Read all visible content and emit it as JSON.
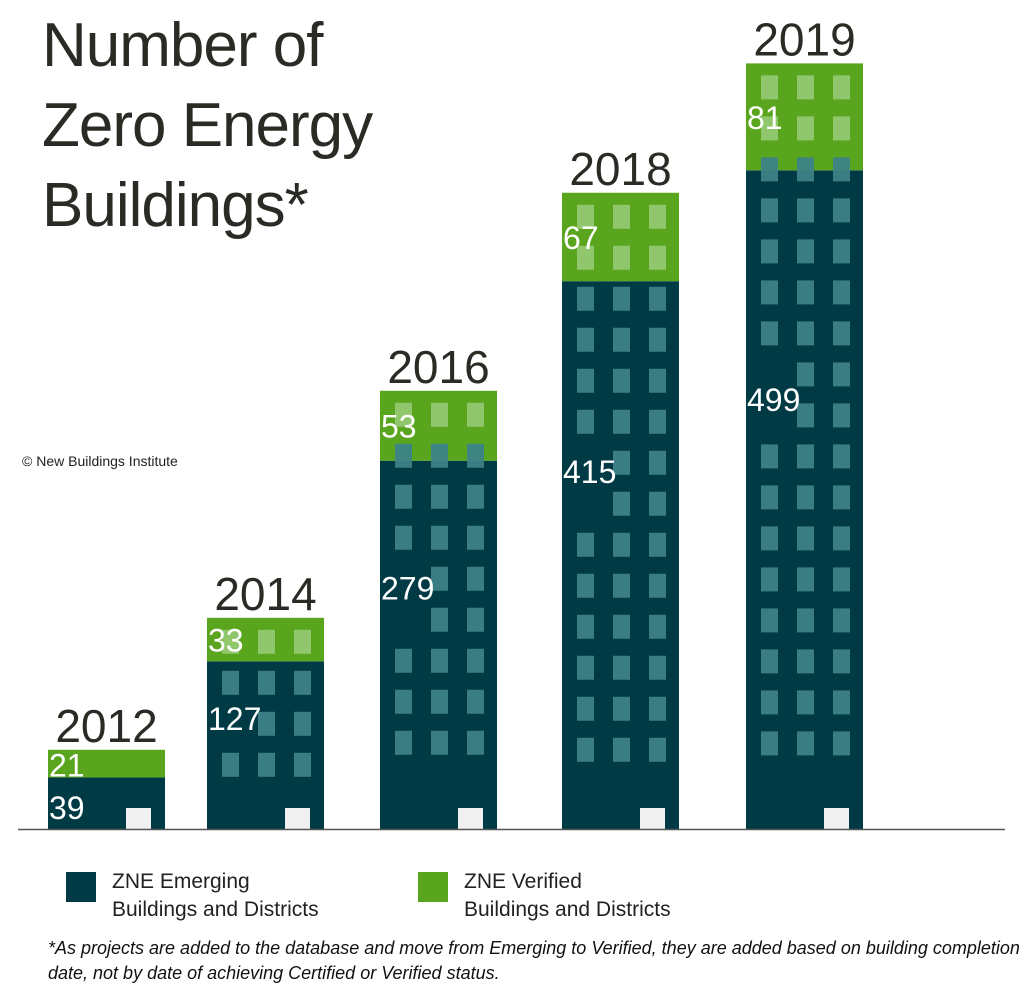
{
  "title_lines": [
    "Number of",
    "Zero Energy",
    "Buildings*"
  ],
  "credit": "© New Buildings Institute",
  "colors": {
    "emerging": "#003a45",
    "verified": "#5aa51e",
    "emerging_window": "#3d8287",
    "verified_window": "#94c872",
    "door": "#f0f0f0",
    "axis": "#555555"
  },
  "chart_data": {
    "type": "bar",
    "stacked": true,
    "categories": [
      "2012",
      "2014",
      "2016",
      "2018",
      "2019"
    ],
    "series": [
      {
        "name": "ZNE Emerging Buildings and Districts",
        "values": [
          39,
          127,
          279,
          415,
          499
        ]
      },
      {
        "name": "ZNE Verified Buildings and Districts",
        "values": [
          21,
          33,
          53,
          67,
          81
        ]
      }
    ],
    "title": "Number of Zero Energy Buildings*",
    "legend_position": "bottom",
    "grid": false
  },
  "legend": [
    {
      "line1": "ZNE Emerging",
      "line2": "Buildings and Districts"
    },
    {
      "line1": "ZNE Verified",
      "line2": "Buildings and Districts"
    }
  ],
  "footnote": "*As projects are added to the database and move from Emerging to Verified, they are added based on building completion date, not by date of achieving Certified or Verified status."
}
